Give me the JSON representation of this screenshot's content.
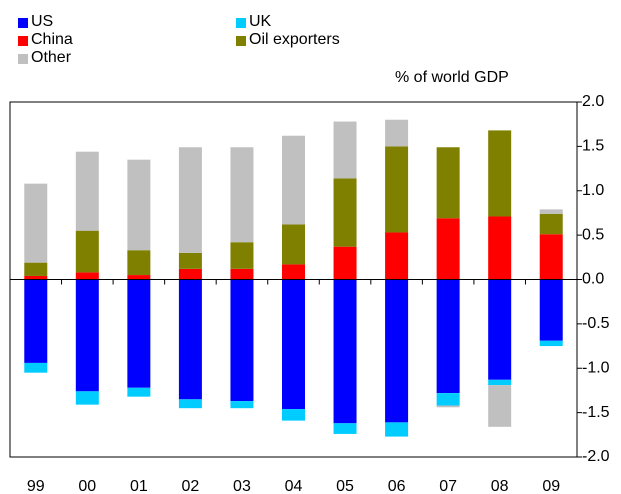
{
  "chart_data": {
    "type": "bar",
    "stacked": true,
    "y_label": "% of world GDP",
    "categories": [
      "99",
      "00",
      "01",
      "02",
      "03",
      "04",
      "05",
      "06",
      "07",
      "08",
      "09"
    ],
    "series": [
      {
        "name": "US",
        "color": "#0000ff",
        "values": [
          -0.94,
          -1.26,
          -1.22,
          -1.35,
          -1.37,
          -1.46,
          -1.62,
          -1.61,
          -1.28,
          -1.13,
          -0.69
        ]
      },
      {
        "name": "UK",
        "color": "#00ccff",
        "values": [
          -0.11,
          -0.15,
          -0.1,
          -0.1,
          -0.08,
          -0.13,
          -0.12,
          -0.16,
          -0.14,
          -0.06,
          -0.06
        ]
      },
      {
        "name": "China",
        "color": "#ff0000",
        "values": [
          0.04,
          0.08,
          0.05,
          0.12,
          0.12,
          0.17,
          0.37,
          0.53,
          0.69,
          0.71,
          0.51
        ]
      },
      {
        "name": "Oil exporters",
        "color": "#808000",
        "values": [
          0.15,
          0.47,
          0.28,
          0.18,
          0.3,
          0.45,
          0.77,
          0.97,
          0.8,
          0.97,
          0.23
        ]
      },
      {
        "name": "Other",
        "color": "#c0c0c0",
        "values": [
          0.89,
          0.89,
          1.02,
          1.19,
          1.07,
          1.0,
          0.64,
          0.3,
          -0.02,
          -0.47,
          0.05
        ]
      }
    ],
    "ylim": [
      -2,
      2
    ],
    "yticks": [
      {
        "value": 2,
        "label": "2.0"
      },
      {
        "value": 1.5,
        "label": "1.5"
      },
      {
        "value": 1,
        "label": "1.0"
      },
      {
        "value": 0.5,
        "label": "0.5"
      },
      {
        "value": 0,
        "label": "0.0"
      },
      {
        "value": -0.5,
        "label": "-0.5"
      },
      {
        "value": -1,
        "label": "-1.0"
      },
      {
        "value": -1.5,
        "label": "-1.5"
      },
      {
        "value": -2,
        "label": "-2.0"
      }
    ],
    "legend": "top-left"
  }
}
